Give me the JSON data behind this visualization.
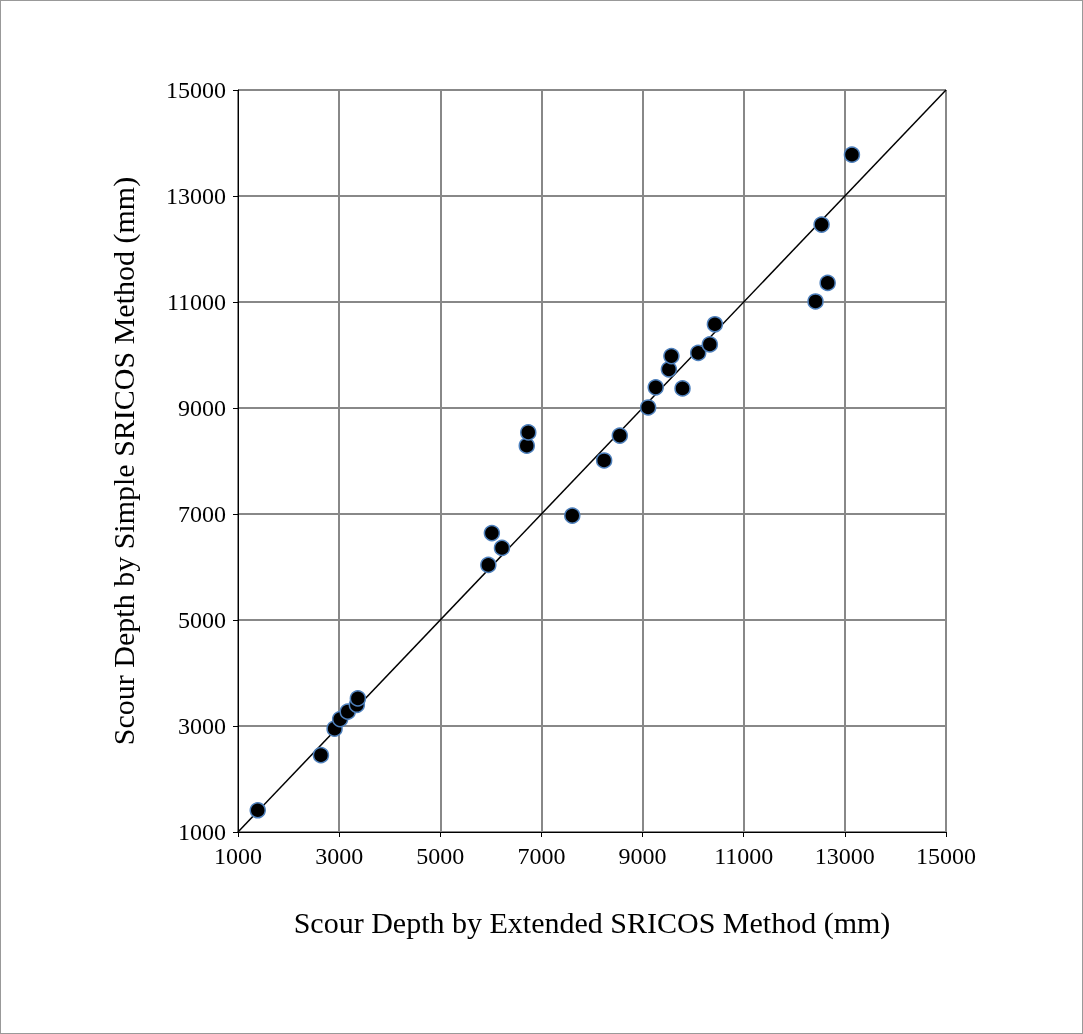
{
  "chart_data": {
    "type": "scatter",
    "xlabel": "Scour Depth by Extended SRICOS Method (mm)",
    "ylabel": "Scour Depth by Simple SRICOS Method (mm)",
    "xlim": [
      1000,
      15000
    ],
    "ylim": [
      1000,
      15000
    ],
    "xticks": [
      1000,
      3000,
      5000,
      7000,
      9000,
      11000,
      13000,
      15000
    ],
    "yticks": [
      1000,
      3000,
      5000,
      7000,
      9000,
      11000,
      13000,
      15000
    ],
    "grid": true,
    "marker": "circle",
    "series": [
      {
        "color": "#000000",
        "x": [
          1390,
          2640,
          2910,
          3020,
          3170,
          3350,
          3370,
          5950,
          6020,
          6220,
          6710,
          6740,
          7610,
          8240,
          8550,
          9110,
          9260,
          9520,
          9570,
          9790,
          10100,
          10330,
          10430,
          12420,
          12540,
          12660,
          13140
        ],
        "values": [
          1410,
          2450,
          2950,
          3130,
          3270,
          3400,
          3520,
          6040,
          6640,
          6360,
          8290,
          8540,
          6970,
          8010,
          8480,
          9010,
          9390,
          9730,
          9980,
          9370,
          10040,
          10200,
          10580,
          11010,
          12460,
          11360,
          13780
        ]
      },
      {
        "type": "line",
        "color": "#000000",
        "x": [
          1000,
          15000
        ],
        "values": [
          1000,
          15000
        ],
        "marker": "none",
        "line_style": "solid"
      }
    ]
  }
}
